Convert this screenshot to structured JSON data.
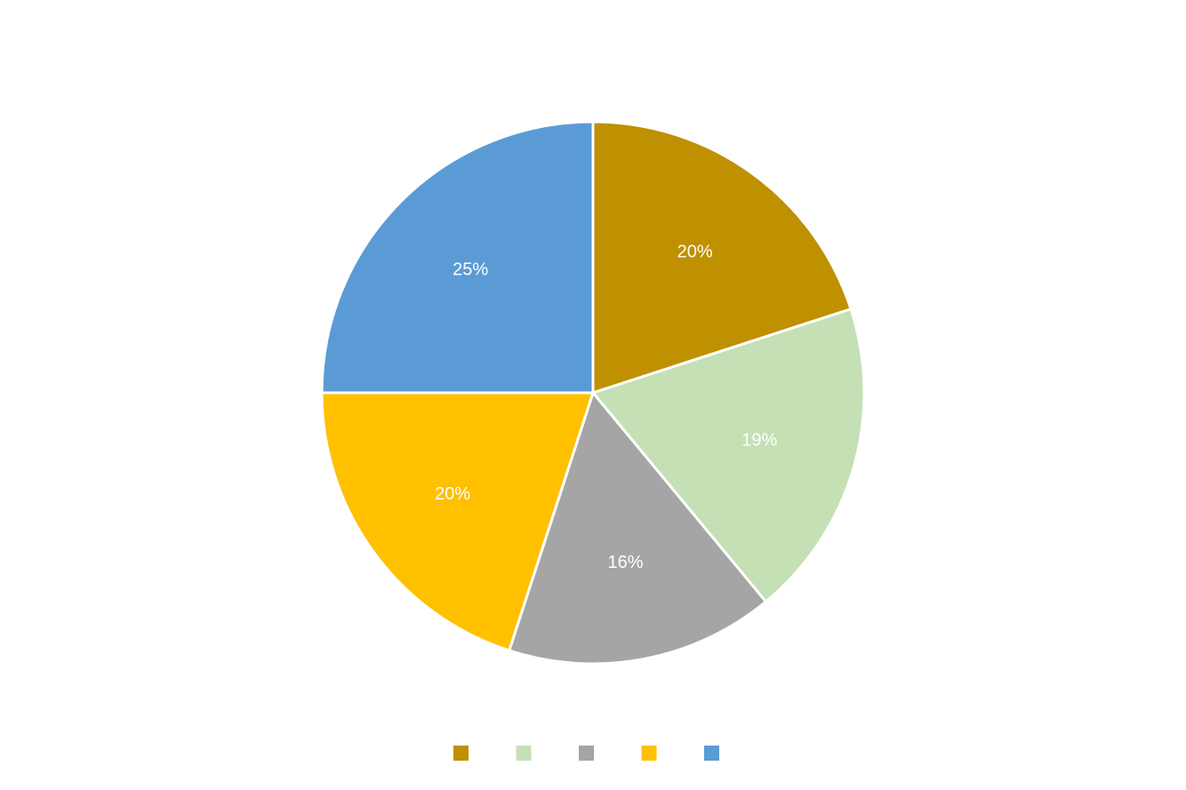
{
  "chart_data": {
    "type": "pie",
    "title": "",
    "values": [
      20,
      19,
      16,
      20,
      25
    ],
    "labels": [
      "20%",
      "19%",
      "16%",
      "20%",
      "25%"
    ],
    "colors": [
      "#BF9000",
      "#C5E0B4",
      "#A5A5A5",
      "#FFC000",
      "#5B9BD5"
    ],
    "start_angle_deg": 0,
    "direction": "clockwise",
    "legend_position": "bottom",
    "slice_border_color": "#FFFFFF",
    "label_color": "#FFFFFF"
  }
}
